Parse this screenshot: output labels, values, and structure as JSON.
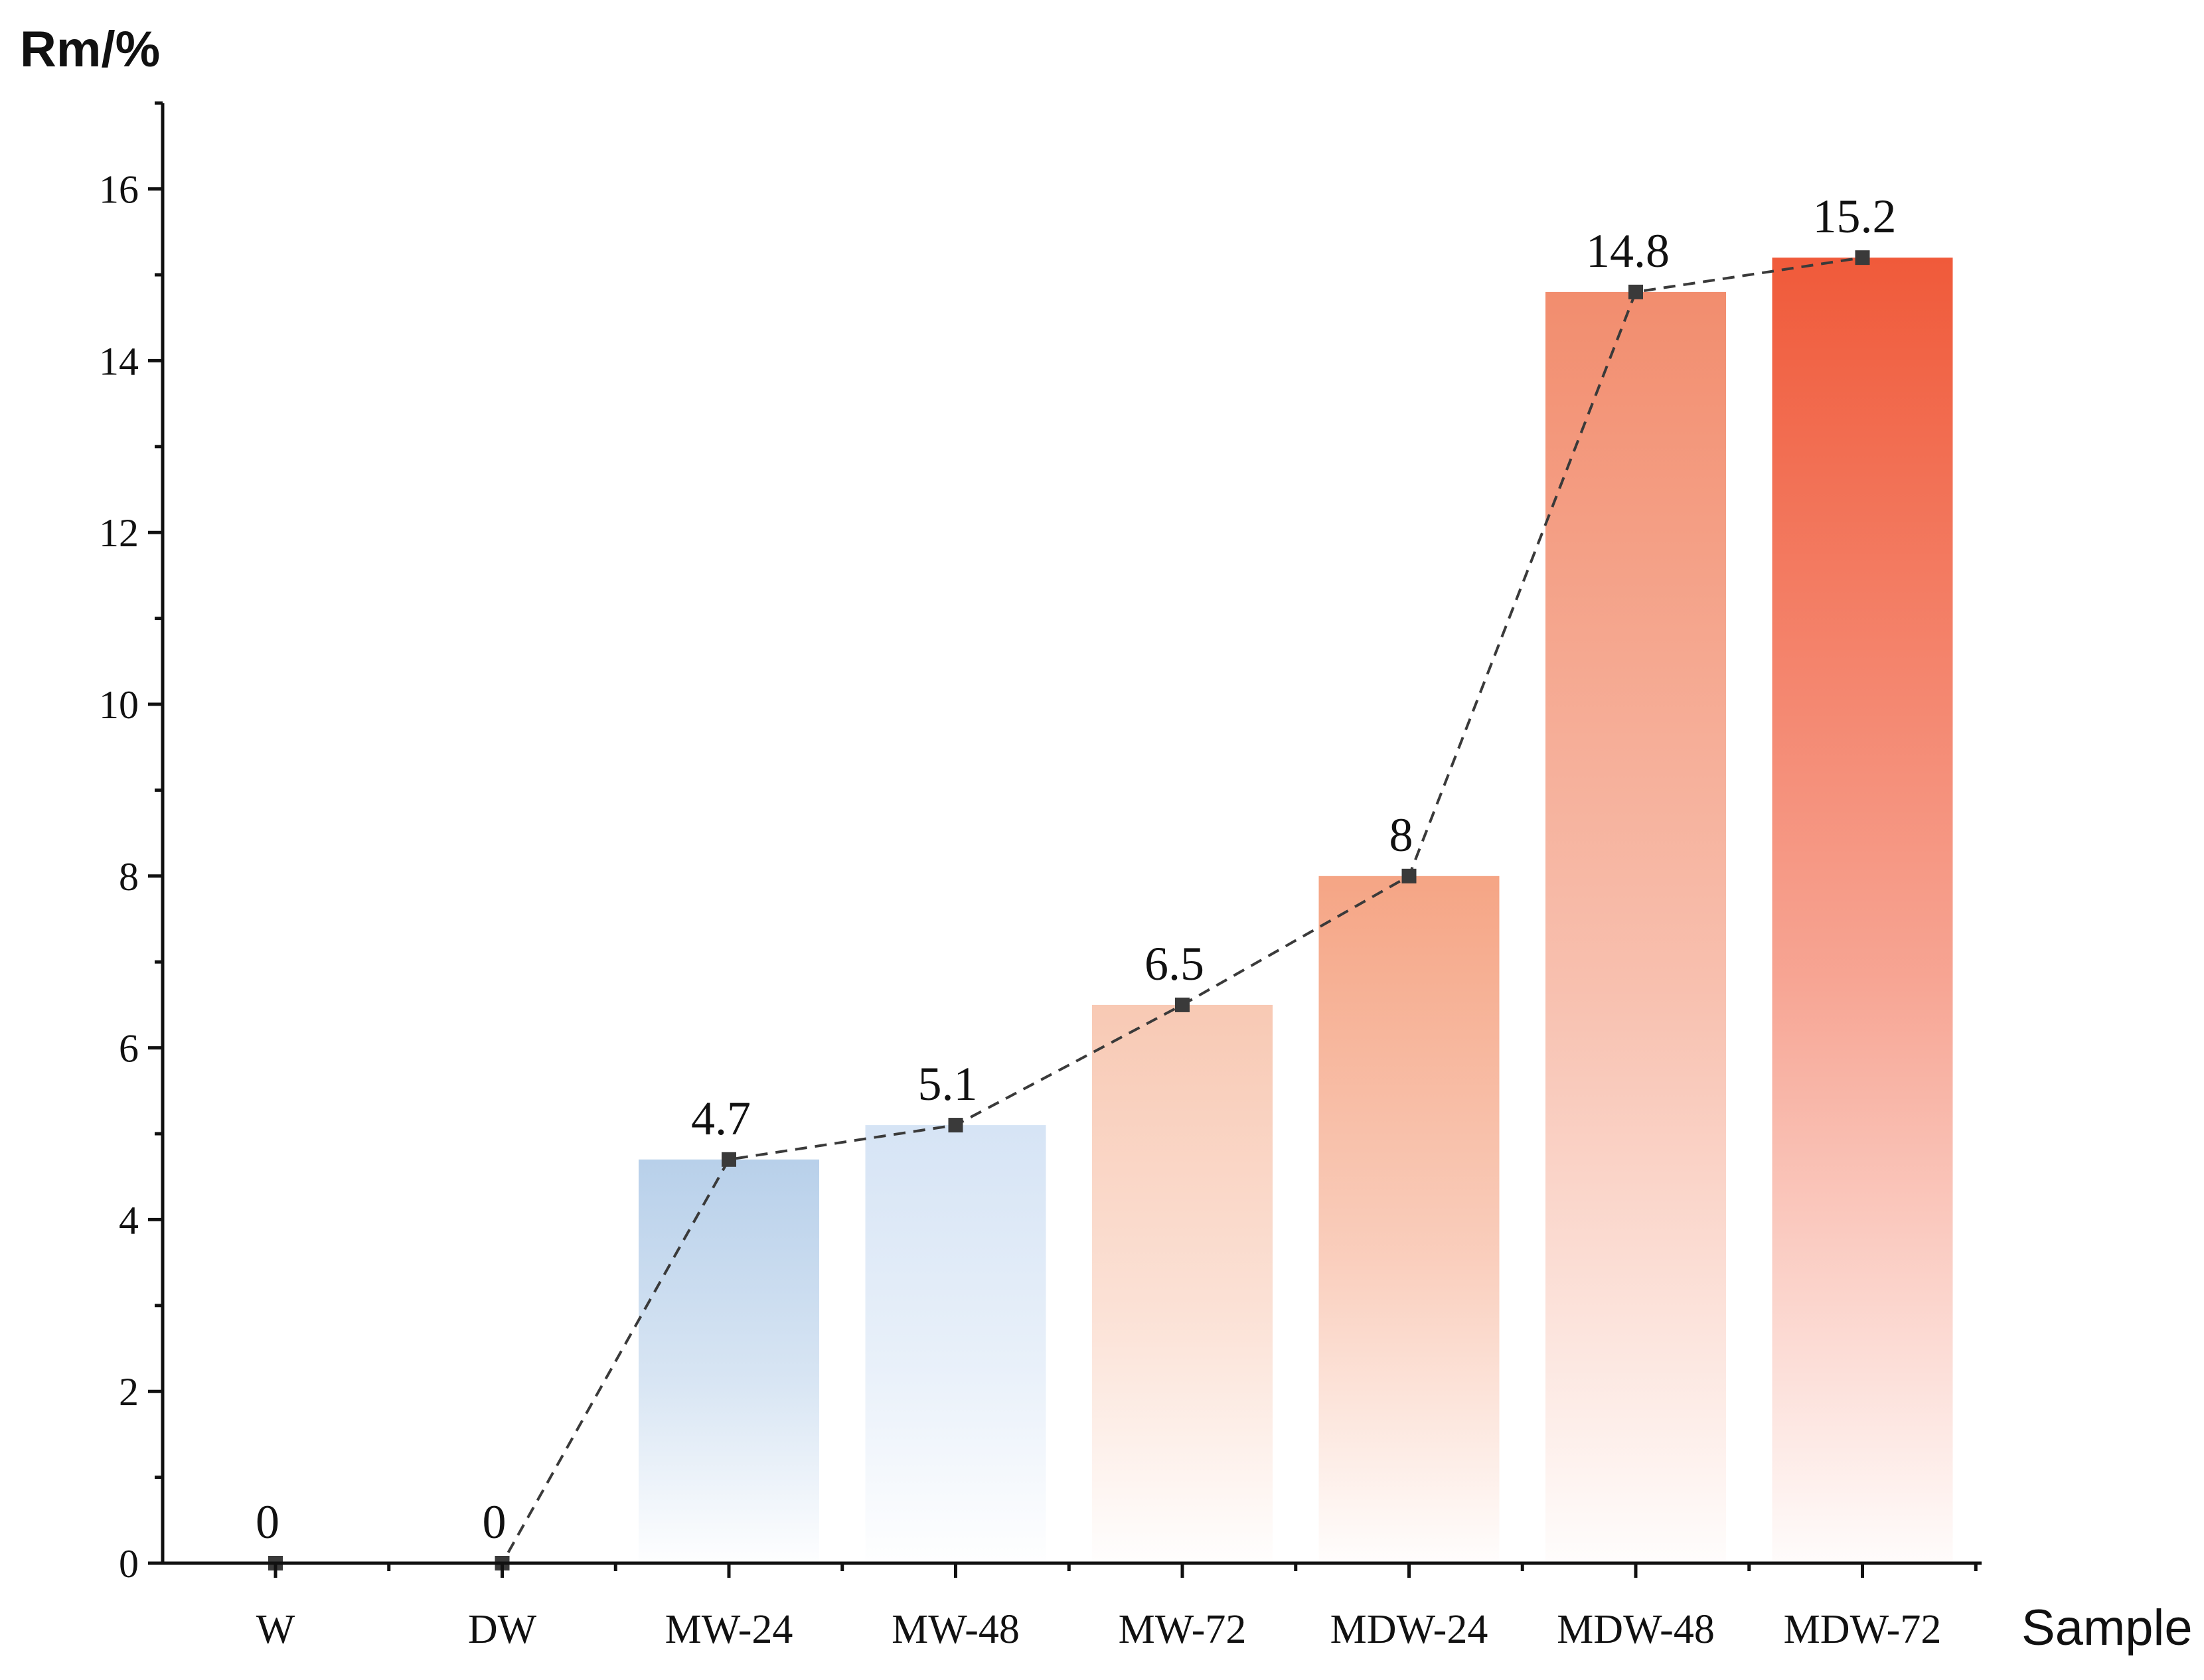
{
  "chart_data": {
    "type": "bar",
    "title": "",
    "ylabel": "Rm/%",
    "xlabel": "Sample",
    "ylim": [
      0,
      17
    ],
    "yticks": [
      0,
      2,
      4,
      6,
      8,
      10,
      12,
      14,
      16
    ],
    "categories": [
      "W",
      "DW",
      "MW-24",
      "MW-48",
      "MW-72",
      "MDW-24",
      "MDW-48",
      "MDW-72"
    ],
    "values": [
      0,
      0,
      4.7,
      5.1,
      6.5,
      8,
      14.8,
      15.2
    ],
    "data_labels": [
      "0",
      "0",
      "4.7",
      "5.1",
      "6.5",
      "8",
      "14.8",
      "15.2"
    ],
    "bar_colors": [
      "#b8d0ea",
      "#b8d0ea",
      "#b8d0ea",
      "#d6e4f5",
      "#f8c9b4",
      "#f5a585",
      "#f28d6e",
      "#f05a3a"
    ],
    "overlay_line": {
      "style": "dashed",
      "marker": "square",
      "color": "#3a3a3a"
    }
  }
}
